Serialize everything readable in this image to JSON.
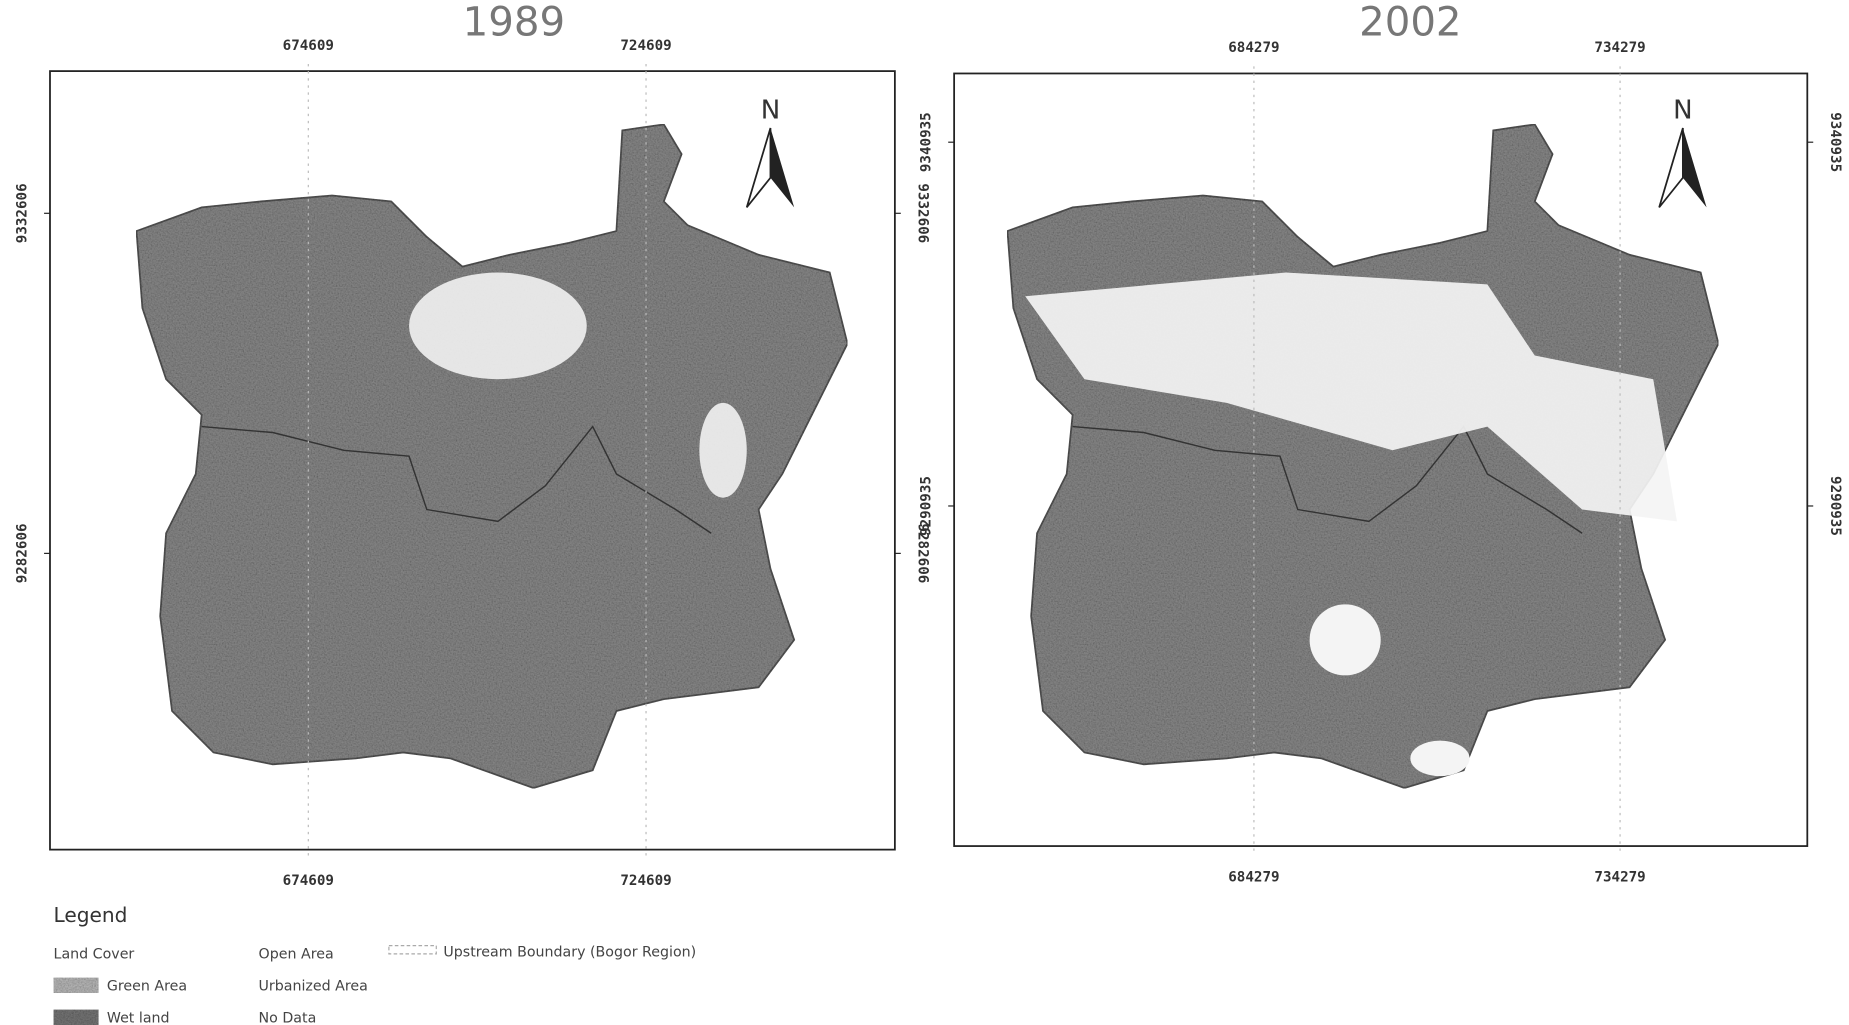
{
  "maps": [
    {
      "title": "1989",
      "north": "N",
      "x_ticks": [
        "674609",
        "724609"
      ],
      "y_ticks": [
        "9332606",
        "9282606"
      ]
    },
    {
      "title": "2002",
      "north": "N",
      "x_ticks": [
        "684279",
        "734279"
      ],
      "y_ticks": [
        "9340935",
        "9290935"
      ]
    }
  ],
  "legend": {
    "title": "Legend",
    "heading": "Land Cover",
    "items": [
      "Green Area",
      "Wet land",
      "Open Area",
      "Urbanized Area",
      "No Data"
    ],
    "boundary": "Upstream Boundary (Bogor Region)"
  }
}
